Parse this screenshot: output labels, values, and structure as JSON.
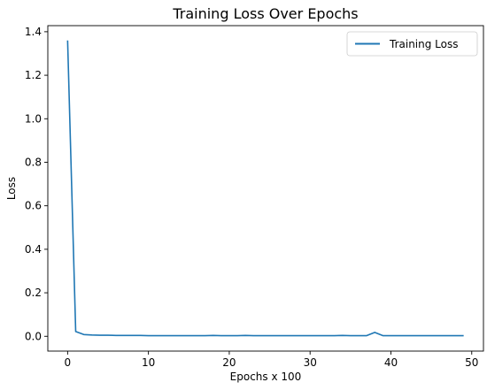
{
  "chart_data": {
    "type": "line",
    "title": "Training Loss Over Epochs",
    "xlabel": "Epochs x 100",
    "ylabel": "Loss",
    "xlim": [
      -2.45,
      51.45
    ],
    "ylim": [
      -0.068,
      1.428
    ],
    "xticks": [
      0,
      10,
      20,
      30,
      40,
      50
    ],
    "yticks": [
      0.0,
      0.2,
      0.4,
      0.6,
      0.8,
      1.0,
      1.2,
      1.4
    ],
    "ytick_labels": [
      "0.0",
      "0.2",
      "0.4",
      "0.6",
      "0.8",
      "1.0",
      "1.2",
      "1.4"
    ],
    "grid": false,
    "legend_position": "top-right",
    "series": [
      {
        "name": "Training Loss",
        "color": "#1f77b4",
        "x": [
          0,
          1,
          2,
          3,
          4,
          5,
          6,
          7,
          8,
          9,
          10,
          11,
          12,
          13,
          14,
          15,
          16,
          17,
          18,
          19,
          20,
          21,
          22,
          23,
          24,
          25,
          26,
          27,
          28,
          29,
          30,
          31,
          32,
          33,
          34,
          35,
          36,
          37,
          38,
          39,
          40,
          41,
          42,
          43,
          44,
          45,
          46,
          47,
          48,
          49
        ],
        "values": [
          1.36,
          0.022,
          0.008,
          0.006,
          0.005,
          0.005,
          0.004,
          0.004,
          0.004,
          0.004,
          0.003,
          0.003,
          0.003,
          0.003,
          0.003,
          0.003,
          0.003,
          0.003,
          0.004,
          0.003,
          0.003,
          0.003,
          0.004,
          0.003,
          0.003,
          0.003,
          0.003,
          0.003,
          0.003,
          0.003,
          0.003,
          0.003,
          0.003,
          0.003,
          0.004,
          0.003,
          0.003,
          0.003,
          0.018,
          0.003,
          0.003,
          0.003,
          0.003,
          0.003,
          0.003,
          0.003,
          0.003,
          0.003,
          0.003,
          0.003
        ]
      }
    ]
  }
}
